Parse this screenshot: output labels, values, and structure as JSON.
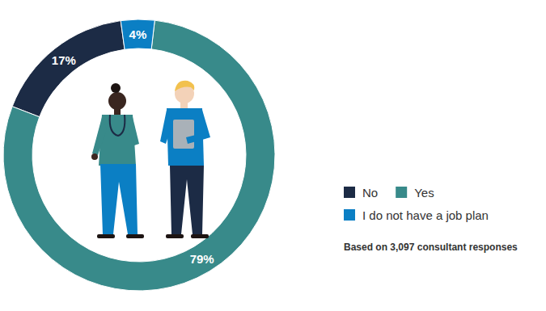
{
  "chart_data": {
    "type": "donut",
    "categories": [
      "No",
      "Yes",
      "I do not have a job plan"
    ],
    "values": [
      17,
      79,
      4
    ],
    "value_labels": [
      "17%",
      "79%",
      "4%"
    ],
    "colors": [
      "#1c2b45",
      "#388a8a",
      "#0b7fc4"
    ],
    "data_labels": true,
    "legend": "right",
    "annotations": [
      "Based on 3,097 consultant responses"
    ]
  }
}
